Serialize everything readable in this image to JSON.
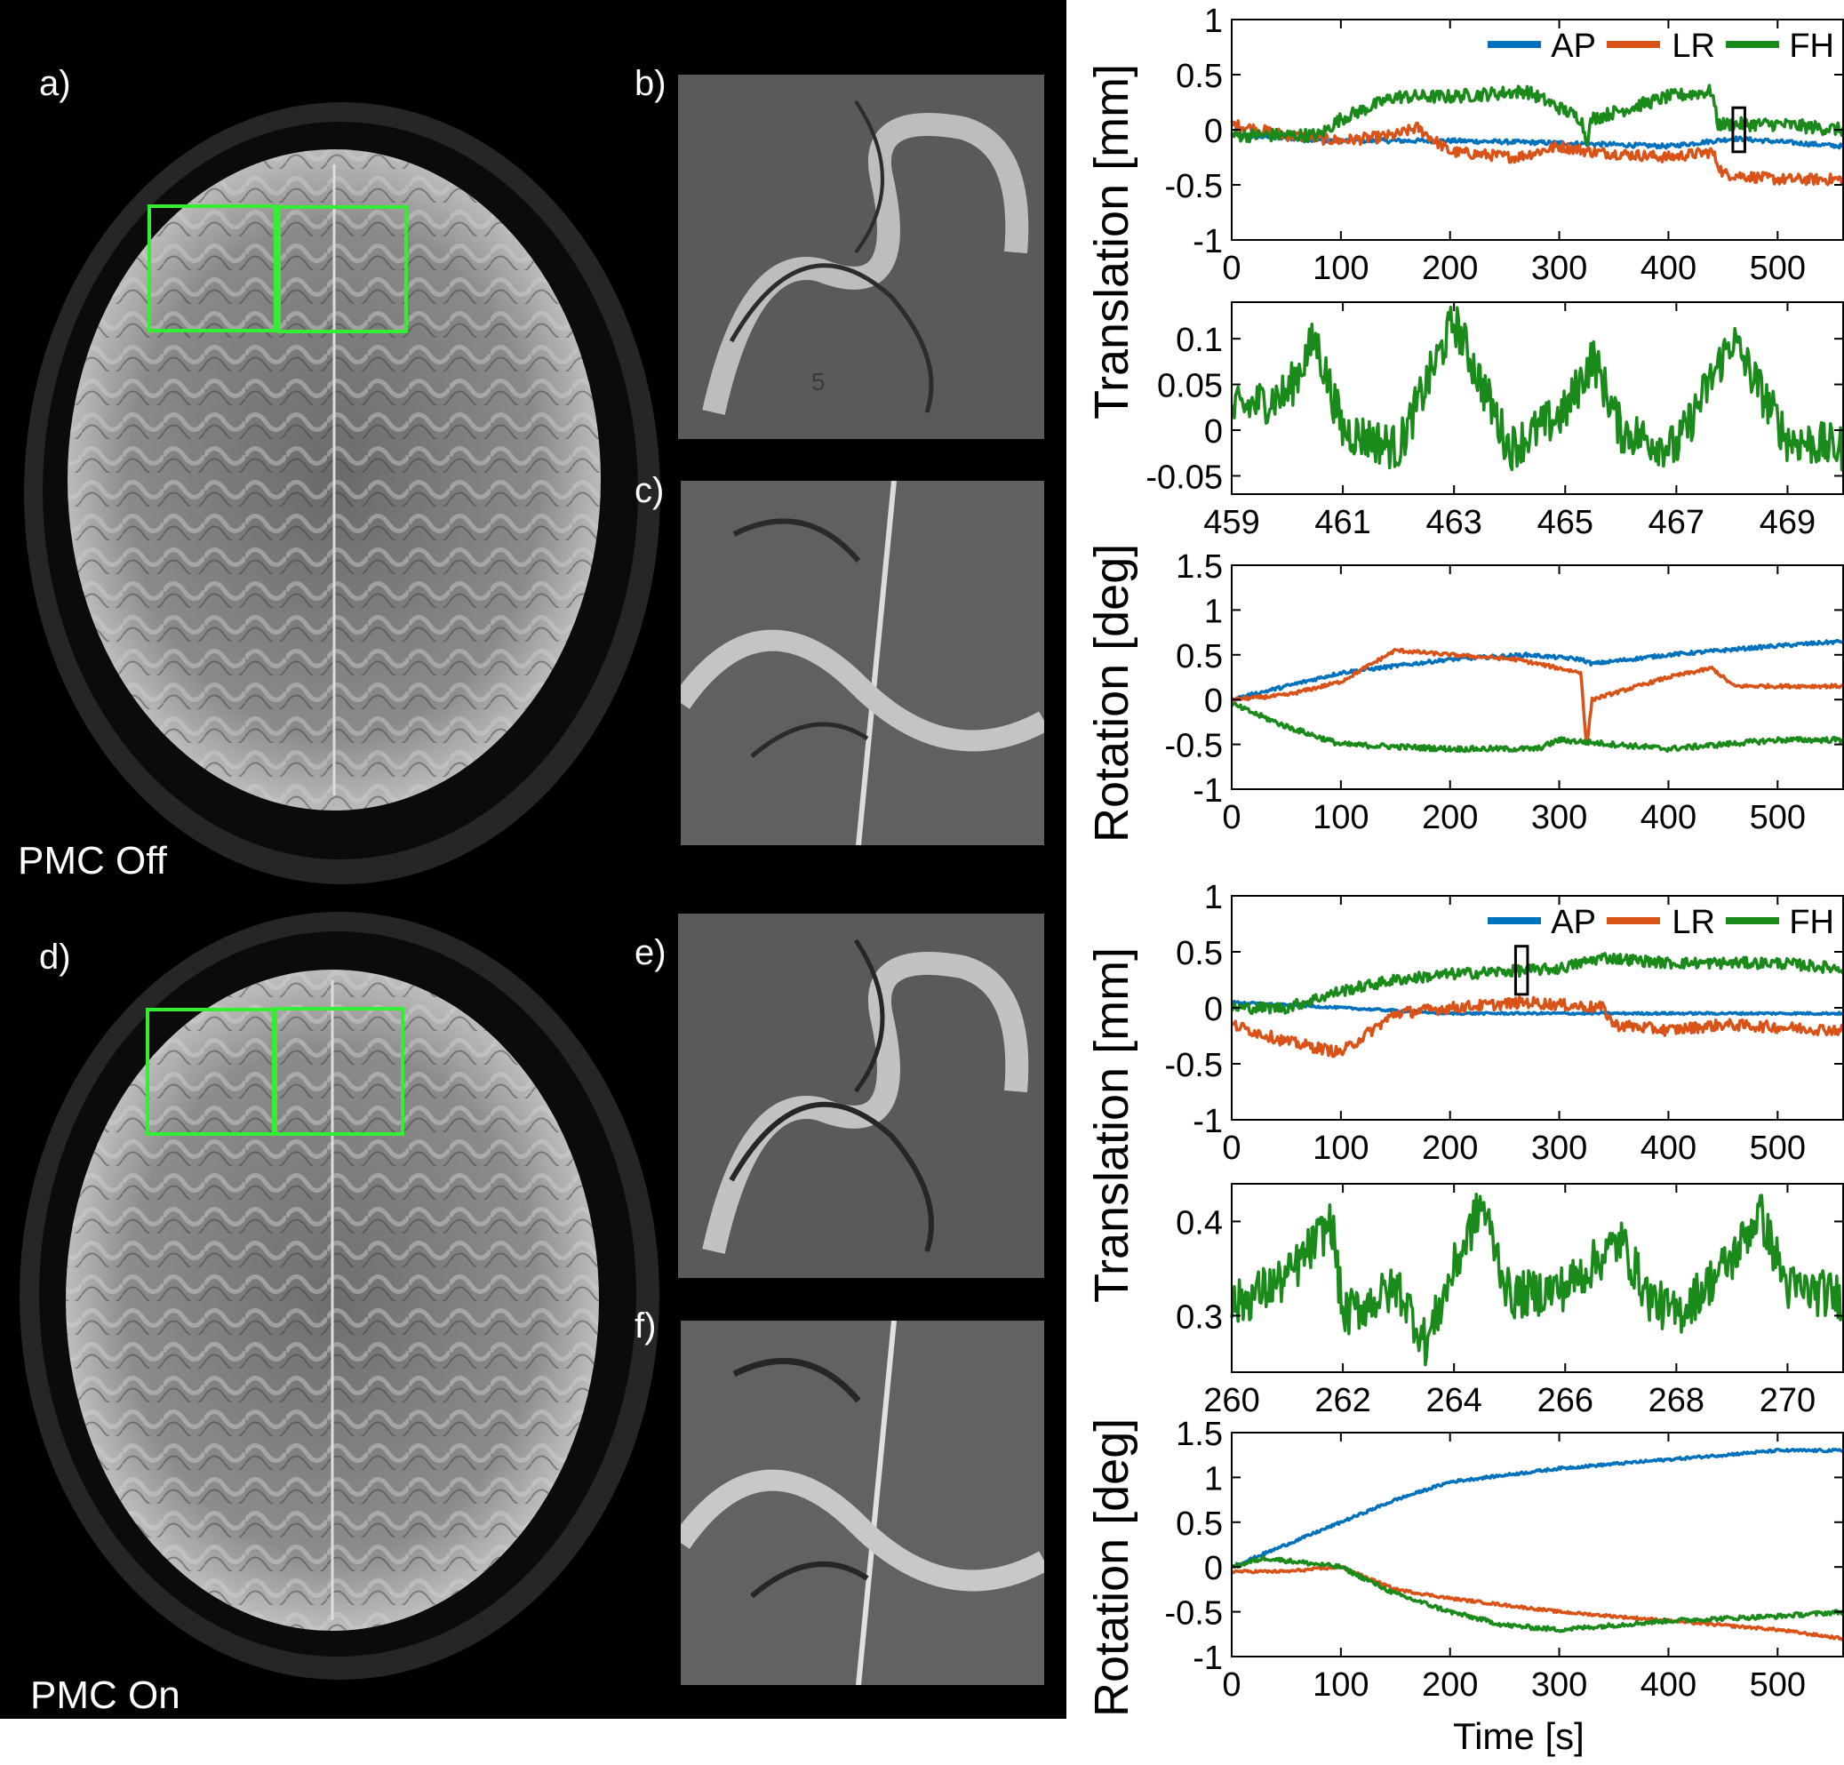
{
  "panel_labels": {
    "a": "a)",
    "b": "b)",
    "c": "c)",
    "d": "d)",
    "e": "e)",
    "f": "f)"
  },
  "image_captions": {
    "off": "PMC Off",
    "on": "PMC On"
  },
  "zoom_b_artifact_text": "5",
  "colors": {
    "AP": "#0072bd",
    "LR": "#d95319",
    "FH": "#1a8a1a",
    "roi": "#33ee33",
    "text": "#000000"
  },
  "axis_labels": {
    "translation": "Translation [mm]",
    "rotation": "Rotation [deg]",
    "time": "Time [s]"
  },
  "chart_data": [
    {
      "id": "off-translation",
      "type": "line",
      "title": "",
      "xlabel": "",
      "ylabel": "Translation [mm]",
      "xlim": [
        0,
        560
      ],
      "ylim": [
        -1,
        1
      ],
      "xticks": [
        0,
        100,
        200,
        300,
        400,
        500
      ],
      "yticks": [
        -1,
        -0.5,
        0,
        0.5,
        1
      ],
      "legend": [
        "AP",
        "LR",
        "FH"
      ],
      "legend_position": "top-right",
      "highlight_box": {
        "x": [
          459,
          470
        ],
        "y": [
          -0.2,
          0.2
        ]
      },
      "series": [
        {
          "name": "AP",
          "color": "#0072bd",
          "noise": 0.02,
          "points": [
            [
              0,
              -0.05
            ],
            [
              100,
              -0.1
            ],
            [
              200,
              -0.1
            ],
            [
              300,
              -0.12
            ],
            [
              400,
              -0.15
            ],
            [
              460,
              -0.08
            ],
            [
              560,
              -0.15
            ]
          ]
        },
        {
          "name": "LR",
          "color": "#d95319",
          "noise": 0.05,
          "points": [
            [
              0,
              0.05
            ],
            [
              50,
              -0.05
            ],
            [
              100,
              -0.1
            ],
            [
              150,
              -0.05
            ],
            [
              170,
              0.02
            ],
            [
              200,
              -0.2
            ],
            [
              260,
              -0.25
            ],
            [
              300,
              -0.15
            ],
            [
              330,
              -0.2
            ],
            [
              400,
              -0.25
            ],
            [
              440,
              -0.2
            ],
            [
              450,
              -0.4
            ],
            [
              500,
              -0.45
            ],
            [
              560,
              -0.45
            ]
          ]
        },
        {
          "name": "FH",
          "color": "#1a8a1a",
          "noise": 0.06,
          "points": [
            [
              0,
              -0.05
            ],
            [
              80,
              -0.05
            ],
            [
              100,
              0.1
            ],
            [
              150,
              0.3
            ],
            [
              200,
              0.3
            ],
            [
              270,
              0.35
            ],
            [
              320,
              0.1
            ],
            [
              325,
              -0.1
            ],
            [
              330,
              0.1
            ],
            [
              400,
              0.3
            ],
            [
              440,
              0.35
            ],
            [
              445,
              0.05
            ],
            [
              500,
              0.05
            ],
            [
              560,
              0.0
            ]
          ]
        }
      ]
    },
    {
      "id": "off-zoom",
      "type": "line",
      "title": "",
      "xlabel": "",
      "ylabel": "",
      "xlim": [
        459,
        470
      ],
      "ylim": [
        -0.07,
        0.14
      ],
      "xticks": [
        459,
        461,
        463,
        465,
        467,
        469
      ],
      "yticks": [
        -0.05,
        0,
        0.05,
        0.1
      ],
      "series": [
        {
          "name": "FH",
          "color": "#1a8a1a",
          "noise": 0.025,
          "points": [
            [
              459,
              0.02
            ],
            [
              460,
              0.04
            ],
            [
              460.5,
              0.1
            ],
            [
              461,
              0.0
            ],
            [
              462,
              -0.02
            ],
            [
              463,
              0.12
            ],
            [
              464,
              -0.02
            ],
            [
              465,
              0.02
            ],
            [
              465.5,
              0.08
            ],
            [
              466,
              0.0
            ],
            [
              467,
              -0.02
            ],
            [
              468,
              0.1
            ],
            [
              469,
              -0.01
            ],
            [
              470,
              -0.02
            ]
          ]
        }
      ]
    },
    {
      "id": "off-rotation",
      "type": "line",
      "title": "",
      "xlabel": "",
      "ylabel": "Rotation [deg]",
      "xlim": [
        0,
        560
      ],
      "ylim": [
        -1,
        1.5
      ],
      "xticks": [
        0,
        100,
        200,
        300,
        400,
        500
      ],
      "yticks": [
        -1,
        -0.5,
        0,
        0.5,
        1,
        1.5
      ],
      "series": [
        {
          "name": "AP",
          "color": "#0072bd",
          "noise": 0.02,
          "points": [
            [
              0,
              0.0
            ],
            [
              100,
              0.3
            ],
            [
              200,
              0.45
            ],
            [
              270,
              0.5
            ],
            [
              320,
              0.45
            ],
            [
              330,
              0.4
            ],
            [
              400,
              0.5
            ],
            [
              450,
              0.55
            ],
            [
              500,
              0.6
            ],
            [
              560,
              0.65
            ]
          ]
        },
        {
          "name": "LR",
          "color": "#d95319",
          "noise": 0.02,
          "points": [
            [
              0,
              0.0
            ],
            [
              50,
              0.05
            ],
            [
              100,
              0.2
            ],
            [
              150,
              0.55
            ],
            [
              200,
              0.5
            ],
            [
              260,
              0.45
            ],
            [
              320,
              0.3
            ],
            [
              325,
              -0.55
            ],
            [
              330,
              0.0
            ],
            [
              400,
              0.25
            ],
            [
              440,
              0.35
            ],
            [
              460,
              0.15
            ],
            [
              560,
              0.15
            ]
          ]
        },
        {
          "name": "FH",
          "color": "#1a8a1a",
          "noise": 0.03,
          "points": [
            [
              0,
              -0.05
            ],
            [
              50,
              -0.3
            ],
            [
              100,
              -0.5
            ],
            [
              200,
              -0.55
            ],
            [
              280,
              -0.55
            ],
            [
              300,
              -0.45
            ],
            [
              350,
              -0.5
            ],
            [
              400,
              -0.55
            ],
            [
              500,
              -0.45
            ],
            [
              560,
              -0.45
            ]
          ]
        }
      ]
    },
    {
      "id": "on-translation",
      "type": "line",
      "title": "",
      "xlabel": "",
      "ylabel": "Translation [mm]",
      "xlim": [
        0,
        560
      ],
      "ylim": [
        -1,
        1
      ],
      "xticks": [
        0,
        100,
        200,
        300,
        400,
        500
      ],
      "yticks": [
        -1,
        -0.5,
        0,
        0.5,
        1
      ],
      "legend": [
        "AP",
        "LR",
        "FH"
      ],
      "legend_position": "top-right",
      "highlight_box": {
        "x": [
          260,
          271
        ],
        "y": [
          0.12,
          0.55
        ]
      },
      "series": [
        {
          "name": "AP",
          "color": "#0072bd",
          "noise": 0.01,
          "points": [
            [
              0,
              0.05
            ],
            [
              100,
              0.0
            ],
            [
              200,
              -0.05
            ],
            [
              300,
              -0.05
            ],
            [
              400,
              -0.05
            ],
            [
              560,
              -0.05
            ]
          ]
        },
        {
          "name": "LR",
          "color": "#d95319",
          "noise": 0.05,
          "points": [
            [
              0,
              -0.15
            ],
            [
              50,
              -0.3
            ],
            [
              100,
              -0.4
            ],
            [
              150,
              -0.05
            ],
            [
              200,
              0.0
            ],
            [
              270,
              0.05
            ],
            [
              340,
              0.0
            ],
            [
              350,
              -0.15
            ],
            [
              400,
              -0.2
            ],
            [
              450,
              -0.15
            ],
            [
              560,
              -0.2
            ]
          ]
        },
        {
          "name": "FH",
          "color": "#1a8a1a",
          "noise": 0.05,
          "points": [
            [
              0,
              0.0
            ],
            [
              50,
              0.0
            ],
            [
              100,
              0.15
            ],
            [
              150,
              0.25
            ],
            [
              200,
              0.3
            ],
            [
              300,
              0.35
            ],
            [
              340,
              0.45
            ],
            [
              400,
              0.4
            ],
            [
              500,
              0.4
            ],
            [
              560,
              0.35
            ]
          ]
        }
      ]
    },
    {
      "id": "on-zoom",
      "type": "line",
      "title": "",
      "xlabel": "",
      "ylabel": "",
      "xlim": [
        260,
        271
      ],
      "ylim": [
        0.24,
        0.44
      ],
      "xticks": [
        260,
        262,
        264,
        266,
        268,
        270
      ],
      "yticks": [
        0.3,
        0.4
      ],
      "series": [
        {
          "name": "FH",
          "color": "#1a8a1a",
          "noise": 0.025,
          "points": [
            [
              260,
              0.31
            ],
            [
              261,
              0.34
            ],
            [
              261.8,
              0.4
            ],
            [
              262,
              0.3
            ],
            [
              263,
              0.33
            ],
            [
              263.5,
              0.27
            ],
            [
              264,
              0.35
            ],
            [
              264.5,
              0.42
            ],
            [
              265,
              0.32
            ],
            [
              266,
              0.33
            ],
            [
              267,
              0.38
            ],
            [
              267.5,
              0.32
            ],
            [
              268,
              0.3
            ],
            [
              269,
              0.36
            ],
            [
              269.5,
              0.41
            ],
            [
              270,
              0.33
            ],
            [
              271,
              0.32
            ]
          ]
        }
      ]
    },
    {
      "id": "on-rotation",
      "type": "line",
      "title": "",
      "xlabel": "Time [s]",
      "ylabel": "Rotation [deg]",
      "xlim": [
        0,
        560
      ],
      "ylim": [
        -1,
        1.5
      ],
      "xticks": [
        0,
        100,
        200,
        300,
        400,
        500
      ],
      "yticks": [
        -1,
        -0.5,
        0,
        0.5,
        1,
        1.5
      ],
      "series": [
        {
          "name": "AP",
          "color": "#0072bd",
          "noise": 0.015,
          "points": [
            [
              0,
              0.0
            ],
            [
              50,
              0.25
            ],
            [
              100,
              0.5
            ],
            [
              150,
              0.75
            ],
            [
              200,
              0.95
            ],
            [
              300,
              1.1
            ],
            [
              400,
              1.2
            ],
            [
              500,
              1.3
            ],
            [
              560,
              1.3
            ]
          ]
        },
        {
          "name": "LR",
          "color": "#d95319",
          "noise": 0.015,
          "points": [
            [
              0,
              -0.05
            ],
            [
              50,
              -0.05
            ],
            [
              100,
              0.0
            ],
            [
              150,
              -0.25
            ],
            [
              200,
              -0.35
            ],
            [
              300,
              -0.5
            ],
            [
              400,
              -0.6
            ],
            [
              500,
              -0.7
            ],
            [
              560,
              -0.8
            ]
          ]
        },
        {
          "name": "FH",
          "color": "#1a8a1a",
          "noise": 0.025,
          "points": [
            [
              0,
              0.0
            ],
            [
              30,
              0.1
            ],
            [
              100,
              0.0
            ],
            [
              150,
              -0.3
            ],
            [
              200,
              -0.5
            ],
            [
              250,
              -0.65
            ],
            [
              300,
              -0.7
            ],
            [
              400,
              -0.6
            ],
            [
              500,
              -0.55
            ],
            [
              560,
              -0.5
            ]
          ]
        }
      ]
    }
  ]
}
